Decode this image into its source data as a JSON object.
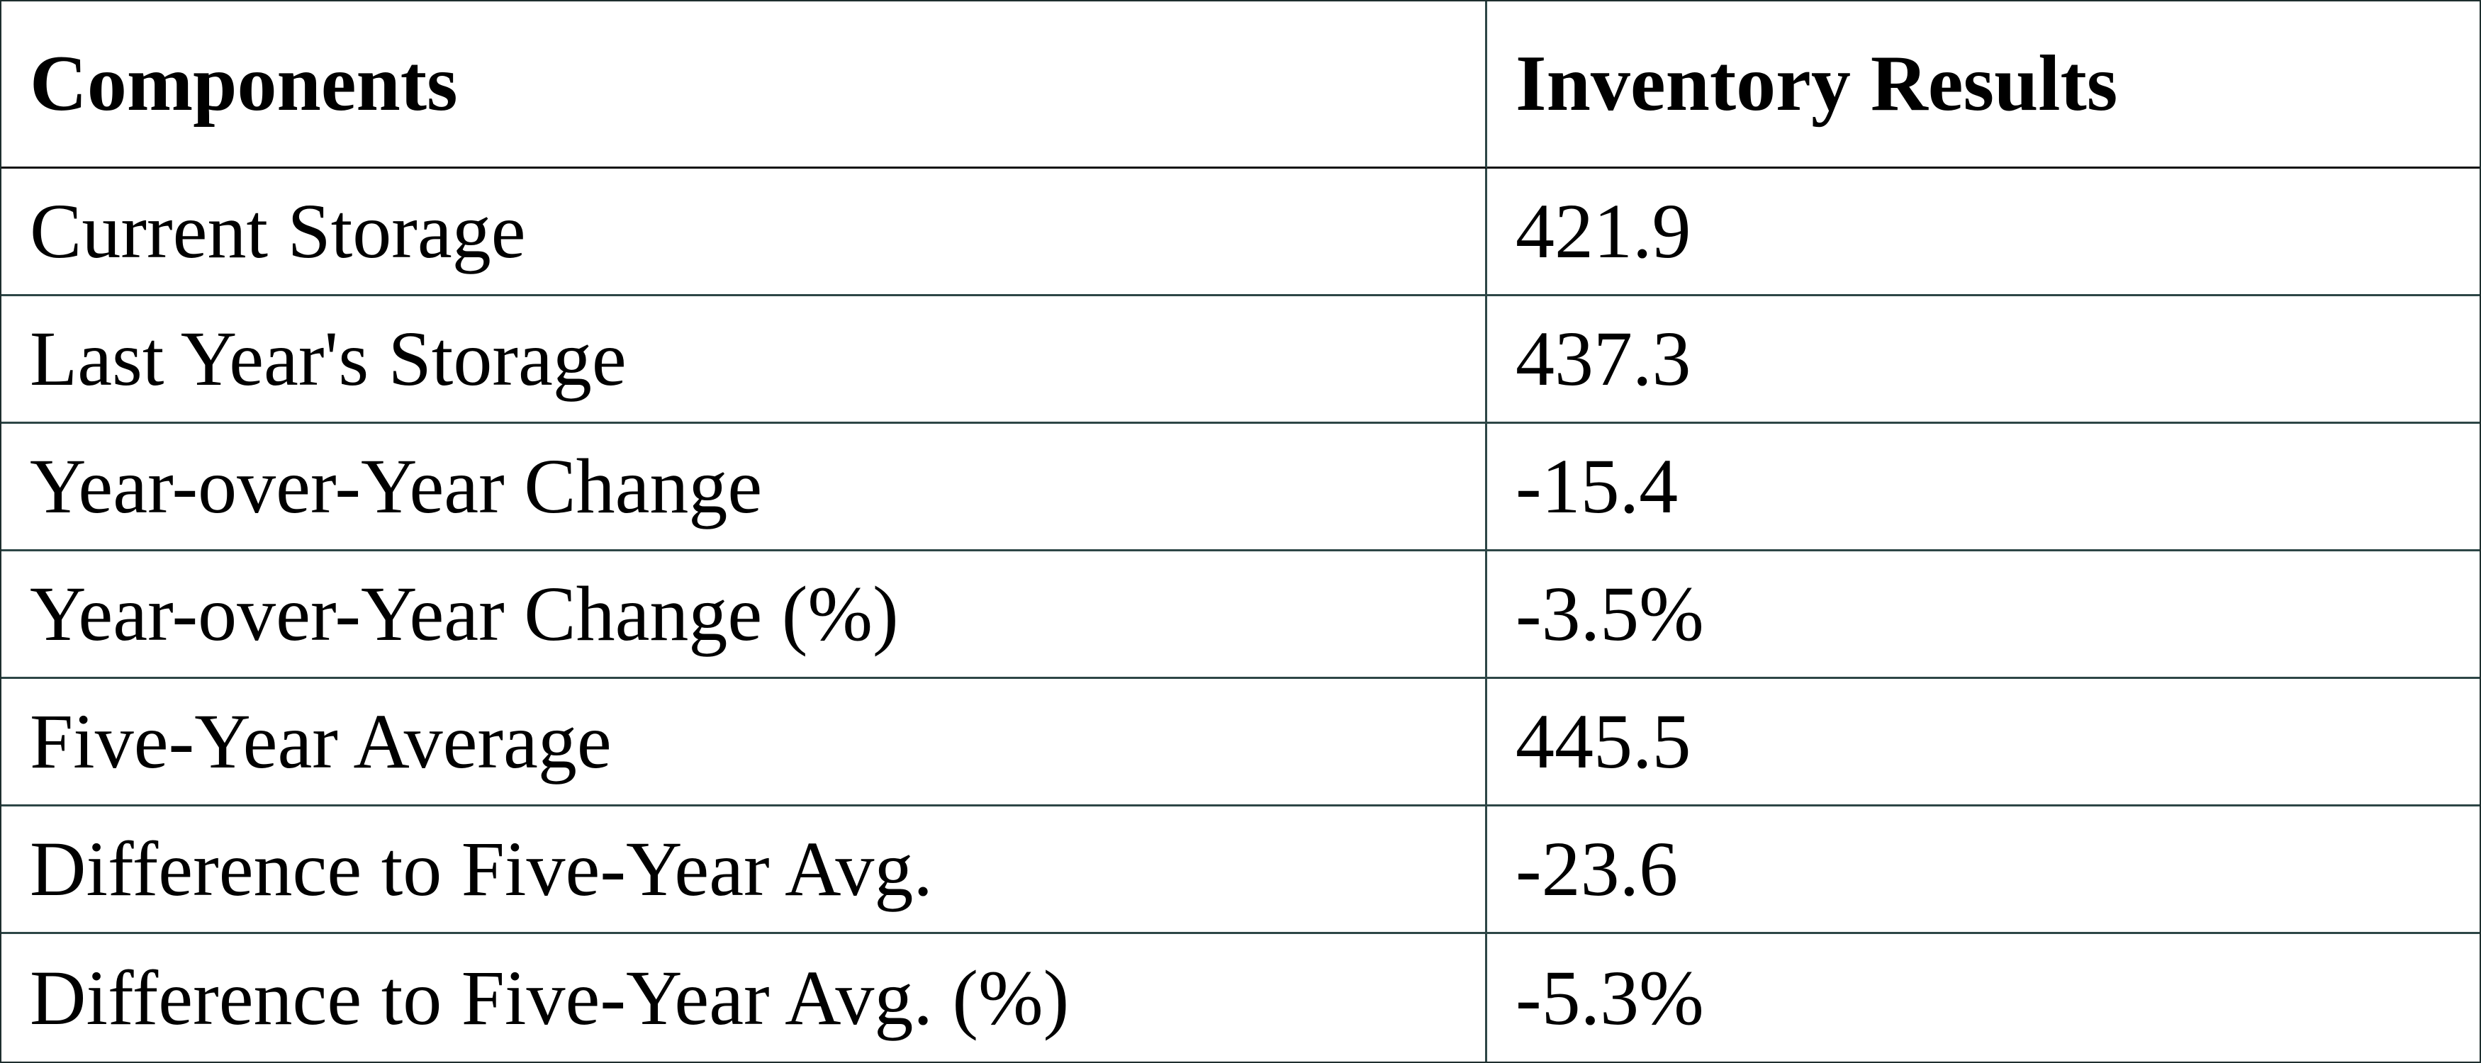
{
  "table": {
    "header": [
      "Components",
      "Inventory Results"
    ],
    "rows": [
      [
        "Current Storage",
        "421.9"
      ],
      [
        "Last Year's Storage",
        "437.3"
      ],
      [
        "Year-over-Year Change",
        "-15.4"
      ],
      [
        "Year-over-Year Change (%)",
        "-3.5%"
      ],
      [
        "Five-Year Average",
        "445.5"
      ],
      [
        "Difference to Five-Year Avg.",
        "-23.6"
      ],
      [
        "Difference to Five-Year Avg. (%)",
        "-5.3%"
      ]
    ]
  }
}
